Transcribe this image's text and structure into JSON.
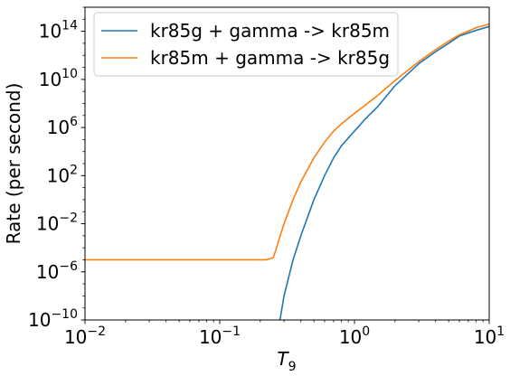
{
  "chart_data": {
    "type": "line",
    "title": "",
    "xlabel": "T",
    "xlabel_sub": "9",
    "ylabel": "Rate (per second)",
    "xscale": "log",
    "yscale": "log",
    "xlim": [
      0.01,
      10
    ],
    "ylim": [
      1e-10,
      1e+16
    ],
    "grid": false,
    "legend_position": "top-left",
    "x_ticks": [
      {
        "value": 0.01,
        "base": "10",
        "exp": "−2"
      },
      {
        "value": 0.1,
        "base": "10",
        "exp": "−1"
      },
      {
        "value": 1,
        "base": "10",
        "exp": "0"
      },
      {
        "value": 10,
        "base": "10",
        "exp": "1"
      }
    ],
    "y_ticks": [
      {
        "value": 1e-10,
        "base": "10",
        "exp": "−10"
      },
      {
        "value": 1e-06,
        "base": "10",
        "exp": "−6"
      },
      {
        "value": 0.01,
        "base": "10",
        "exp": "−2"
      },
      {
        "value": 100,
        "base": "10",
        "exp": "2"
      },
      {
        "value": 1000000.0,
        "base": "10",
        "exp": "6"
      },
      {
        "value": 10000000000.0,
        "base": "10",
        "exp": "10"
      },
      {
        "value": 100000000000000.0,
        "base": "10",
        "exp": "14"
      }
    ],
    "series": [
      {
        "name": "kr85g + gamma -> kr85m",
        "color": "#1f77b4",
        "x": [
          0.28,
          0.3,
          0.35,
          0.4,
          0.5,
          0.6,
          0.7,
          0.8,
          1.0,
          1.2,
          1.5,
          2.0,
          3.0,
          4.0,
          5.0,
          6.0,
          8.0,
          10.0
        ],
        "y": [
          1e-10,
          1e-08,
          1e-05,
          0.001,
          1,
          100,
          3000,
          30000,
          500000.0,
          5000000.0,
          60000000.0,
          3000000000.0,
          200000000000.0,
          2000000000000.0,
          10000000000000.0,
          40000000000000.0,
          120000000000000.0,
          250000000000000.0
        ]
      },
      {
        "name": "kr85m + gamma -> kr85g",
        "color": "#ff7f0e",
        "x": [
          0.01,
          0.05,
          0.1,
          0.15,
          0.2,
          0.22,
          0.25,
          0.3,
          0.35,
          0.4,
          0.5,
          0.6,
          0.7,
          0.8,
          1.0,
          1.2,
          1.5,
          2.0,
          3.0,
          4.0,
          5.0,
          6.0,
          8.0,
          10.0
        ],
        "y": [
          1e-05,
          1e-05,
          1e-05,
          1e-05,
          1e-05,
          1e-05,
          1.5e-05,
          0.01,
          1,
          30,
          3000,
          60000,
          500000.0,
          2000000.0,
          15000000.0,
          70000000.0,
          500000000.0,
          8000000000.0,
          300000000000.0,
          3000000000000.0,
          15000000000000.0,
          50000000000000.0,
          200000000000000.0,
          400000000000000.0
        ]
      }
    ]
  }
}
